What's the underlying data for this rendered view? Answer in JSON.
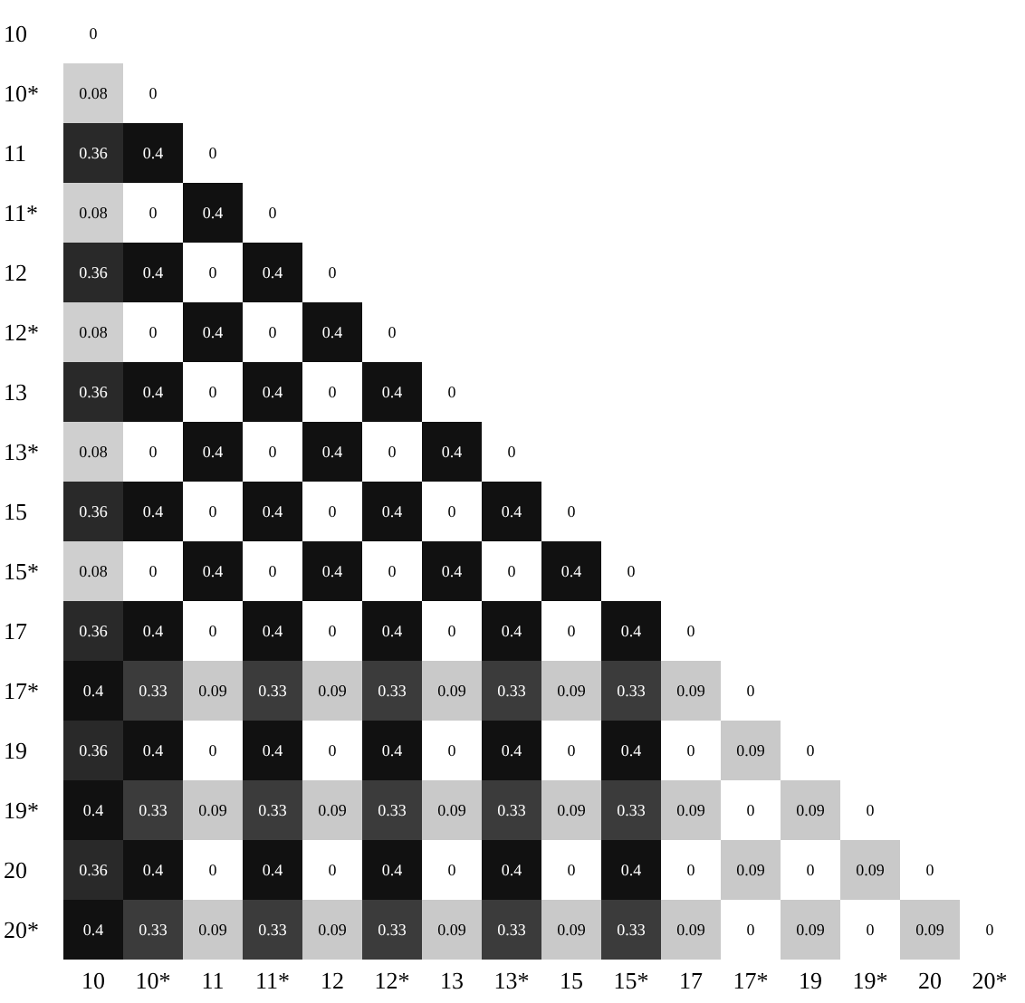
{
  "chart_data": {
    "type": "heatmap",
    "data_labels": true,
    "categories": [
      "10",
      "10*",
      "11",
      "11*",
      "12",
      "12*",
      "13",
      "13*",
      "15",
      "15*",
      "17",
      "17*",
      "19",
      "19*",
      "20",
      "20*"
    ],
    "y_categories": [
      "10",
      "10*",
      "11",
      "11*",
      "12",
      "12*",
      "13",
      "13*",
      "15",
      "15*",
      "17",
      "17*",
      "19",
      "19*",
      "20",
      "20*"
    ],
    "cells": [
      [
        0,
        null,
        null,
        null,
        null,
        null,
        null,
        null,
        null,
        null,
        null,
        null,
        null,
        null,
        null,
        null
      ],
      [
        0.08,
        0,
        null,
        null,
        null,
        null,
        null,
        null,
        null,
        null,
        null,
        null,
        null,
        null,
        null,
        null
      ],
      [
        0.36,
        0.4,
        0,
        null,
        null,
        null,
        null,
        null,
        null,
        null,
        null,
        null,
        null,
        null,
        null,
        null
      ],
      [
        0.08,
        0,
        0.4,
        0,
        null,
        null,
        null,
        null,
        null,
        null,
        null,
        null,
        null,
        null,
        null,
        null
      ],
      [
        0.36,
        0.4,
        0,
        0.4,
        0,
        null,
        null,
        null,
        null,
        null,
        null,
        null,
        null,
        null,
        null,
        null
      ],
      [
        0.08,
        0,
        0.4,
        0,
        0.4,
        0,
        null,
        null,
        null,
        null,
        null,
        null,
        null,
        null,
        null,
        null
      ],
      [
        0.36,
        0.4,
        0,
        0.4,
        0,
        0.4,
        0,
        null,
        null,
        null,
        null,
        null,
        null,
        null,
        null,
        null
      ],
      [
        0.08,
        0,
        0.4,
        0,
        0.4,
        0,
        0.4,
        0,
        null,
        null,
        null,
        null,
        null,
        null,
        null,
        null
      ],
      [
        0.36,
        0.4,
        0,
        0.4,
        0,
        0.4,
        0,
        0.4,
        0,
        null,
        null,
        null,
        null,
        null,
        null,
        null
      ],
      [
        0.08,
        0,
        0.4,
        0,
        0.4,
        0,
        0.4,
        0,
        0.4,
        0,
        null,
        null,
        null,
        null,
        null,
        null
      ],
      [
        0.36,
        0.4,
        0,
        0.4,
        0,
        0.4,
        0,
        0.4,
        0,
        0.4,
        0,
        null,
        null,
        null,
        null,
        null
      ],
      [
        0.4,
        0.33,
        0.09,
        0.33,
        0.09,
        0.33,
        0.09,
        0.33,
        0.09,
        0.33,
        0.09,
        0,
        null,
        null,
        null,
        null
      ],
      [
        0.36,
        0.4,
        0,
        0.4,
        0,
        0.4,
        0,
        0.4,
        0,
        0.4,
        0,
        0.09,
        0,
        null,
        null,
        null
      ],
      [
        0.4,
        0.33,
        0.09,
        0.33,
        0.09,
        0.33,
        0.09,
        0.33,
        0.09,
        0.33,
        0.09,
        0,
        0.09,
        0,
        null,
        null
      ],
      [
        0.36,
        0.4,
        0,
        0.4,
        0,
        0.4,
        0,
        0.4,
        0,
        0.4,
        0,
        0.09,
        0,
        0.09,
        0,
        null
      ],
      [
        0.4,
        0.33,
        0.09,
        0.33,
        0.09,
        0.33,
        0.09,
        0.33,
        0.09,
        0.33,
        0.09,
        0,
        0.09,
        0,
        0.09,
        0
      ]
    ]
  }
}
